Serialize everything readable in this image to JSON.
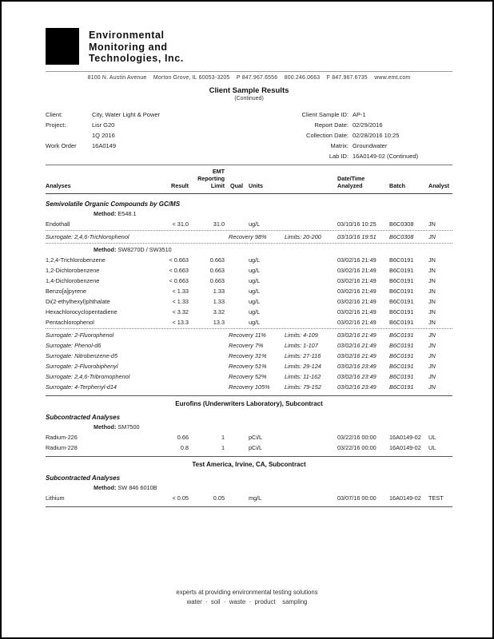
{
  "page": {
    "company_name_lines": [
      "Environmental",
      "Monitoring and",
      "Technologies, Inc."
    ],
    "address_line": "8100 N. Austin Avenue    Morton Grove, IL 60053-3205    P 847.967.6556    800.246.0663    F 847.967.6735    www.emt.com",
    "title": "Client Sample Results",
    "subtitle": "(Continued)"
  },
  "info": {
    "left": [
      {
        "label": "Client:",
        "value": "City, Water Light & Power"
      },
      {
        "label": "Project:",
        "value": "Lisr G20"
      },
      {
        "label": "",
        "value": "1Q 2016"
      },
      {
        "label": "Work Order",
        "value": "16A0149"
      }
    ],
    "right": [
      {
        "label": "Client Sample ID:",
        "value": "AP-1"
      },
      {
        "label": "Report Date:",
        "value": "02/29/2016"
      },
      {
        "label": "Collection Date:",
        "value": "02/28/2016 10:25"
      },
      {
        "label": "Matrix:",
        "value": "Groundwater"
      },
      {
        "label": "Lab ID:",
        "value": "16A0149-02 (Continued)"
      }
    ]
  },
  "table": {
    "method_label": "Method:",
    "header": {
      "analyses": "Analyses",
      "result": "Result",
      "emt": "EMT",
      "reporting": "Reporting",
      "limit": "Limit",
      "qual": "Qual",
      "units": "Units",
      "datetime1": "Date/Time",
      "datetime2": "Analyzed",
      "batch": "Batch",
      "analyst": "Analyst"
    }
  },
  "sections": [
    {
      "title": "Semivolatile Organic Compounds by GC/MS",
      "groups": [
        {
          "method": "E548.1",
          "rows": [
            {
              "type": "analyte",
              "name": "Endothall",
              "result": "< 31.0",
              "limit": "31.0",
              "qual": "",
              "units": "ug/L",
              "datetime": "03/10/16 10:25",
              "batch": "B6C0308",
              "analyst": "JN",
              "sep_after": true
            },
            {
              "type": "surrogate",
              "name": "Surrogate: 2,4,6-Trichlorophenol",
              "recovery": "Recovery 98%",
              "limits": "Limits: 20-200",
              "datetime": "03/10/16 19:51",
              "batch": "B6C0308",
              "analyst": "JN",
              "sep_after": true
            }
          ]
        },
        {
          "method": "SW8270D / SW3510",
          "rows": [
            {
              "type": "analyte",
              "name": "1,2,4-Trichlorobenzene",
              "result": "< 0.663",
              "limit": "0.663",
              "qual": "",
              "units": "ug/L",
              "datetime": "03/02/16 21:49",
              "batch": "B6C0191",
              "analyst": "JN"
            },
            {
              "type": "analyte",
              "name": "1,2-Dichlorobenzene",
              "result": "< 0.663",
              "limit": "0.663",
              "qual": "",
              "units": "ug/L",
              "datetime": "03/02/16 21:49",
              "batch": "B6C0191",
              "analyst": "JN"
            },
            {
              "type": "analyte",
              "name": "1,4-Dichlorobenzene",
              "result": "< 0.663",
              "limit": "0.663",
              "qual": "",
              "units": "ug/L",
              "datetime": "03/02/16 21:49",
              "batch": "B6C0191",
              "analyst": "JN"
            },
            {
              "type": "analyte",
              "name": "Benzo[a]pyrene",
              "result": "< 1.33",
              "limit": "1.33",
              "qual": "",
              "units": "ug/L",
              "datetime": "03/02/16 21:49",
              "batch": "B6C0191",
              "analyst": "JN"
            },
            {
              "type": "analyte",
              "name": "Di(2-ethylhexyl)phthalate",
              "result": "< 1.33",
              "limit": "1.33",
              "qual": "",
              "units": "ug/L",
              "datetime": "03/02/16 21:49",
              "batch": "B6C0191",
              "analyst": "JN"
            },
            {
              "type": "analyte",
              "name": "Hexachlorocyclopentadiene",
              "result": "< 3.32",
              "limit": "3.32",
              "qual": "",
              "units": "ug/L",
              "datetime": "03/02/16 21:49",
              "batch": "B6C0191",
              "analyst": "JN"
            },
            {
              "type": "analyte",
              "name": "Pentachlorophenol",
              "result": "< 13.3",
              "limit": "13.3",
              "qual": "",
              "units": "ug/L",
              "datetime": "03/02/16 21:49",
              "batch": "B6C0191",
              "analyst": "JN",
              "sep_after": true
            },
            {
              "type": "surrogate",
              "name": "Surrogate: 2-Fluorophenol",
              "recovery": "Recovery 11%",
              "limits": "Limits: 4-109",
              "datetime": "03/02/16 21:49",
              "batch": "B6C0191",
              "analyst": "JN"
            },
            {
              "type": "surrogate",
              "name": "Surrogate: Phenol-d6",
              "recovery": "Recovery 7%",
              "limits": "Limits: 1-107",
              "datetime": "03/02/16 21:49",
              "batch": "B6C0191",
              "analyst": "JN"
            },
            {
              "type": "surrogate",
              "name": "Surrogate: Nitrobenzene-d5",
              "recovery": "Recovery 31%",
              "limits": "Limits: 27-116",
              "datetime": "03/02/16 21:49",
              "batch": "B6C0191",
              "analyst": "JN"
            },
            {
              "type": "surrogate",
              "name": "Surrogate: 2-Fluorobiphenyl",
              "recovery": "Recovery 51%",
              "limits": "Limits: 29-124",
              "datetime": "03/02/16 23:49",
              "batch": "B6C0191",
              "analyst": "JN"
            },
            {
              "type": "surrogate",
              "name": "Surrogate: 2,4,6-Tribromophenol",
              "recovery": "Recovery 52%",
              "limits": "Limits: 11-162",
              "datetime": "03/02/16 23:49",
              "batch": "B6C0191",
              "analyst": "JN"
            },
            {
              "type": "surrogate",
              "name": "Surrogate: 4-Terphenyl-d14",
              "recovery": "Recovery 105%",
              "limits": "Limits: 79-152",
              "datetime": "03/02/16 23:49",
              "batch": "B6C0191",
              "analyst": "JN"
            }
          ]
        }
      ]
    },
    {
      "banner": "Eurofins (Underwriters Laboratory), Subcontract",
      "title": "Subcontracted Analyses",
      "groups": [
        {
          "method": "SM7500",
          "rows": [
            {
              "type": "analyte",
              "name": "Radium-226",
              "result": "0.66",
              "limit": "1",
              "qual": "",
              "units": "pCi/L",
              "datetime": "03/22/16 00:00",
              "batch": "16A0149-02",
              "analyst": "UL"
            },
            {
              "type": "analyte",
              "name": "Radium-228",
              "result": "0.8",
              "limit": "1",
              "qual": "",
              "units": "pCi/L",
              "datetime": "03/22/16 00:00",
              "batch": "16A0149-02",
              "analyst": "UL"
            }
          ]
        }
      ]
    },
    {
      "banner": "Test America, Irvine, CA, Subcontract",
      "title": "Subcontracted Analyses",
      "end_rule": true,
      "groups": [
        {
          "method": "SW 846 6010B",
          "rows": [
            {
              "type": "analyte",
              "name": "Lithium",
              "result": "< 0.05",
              "limit": "0.05",
              "qual": "",
              "units": "mg/L",
              "datetime": "03/07/16 00:00",
              "batch": "16A0149-02",
              "analyst": "TEST"
            }
          ]
        }
      ]
    }
  ],
  "footer": {
    "line1": "experts at providing environmental testing solutions",
    "line2": "water  ·  soil  ·  waste  ·  product    sampling"
  }
}
